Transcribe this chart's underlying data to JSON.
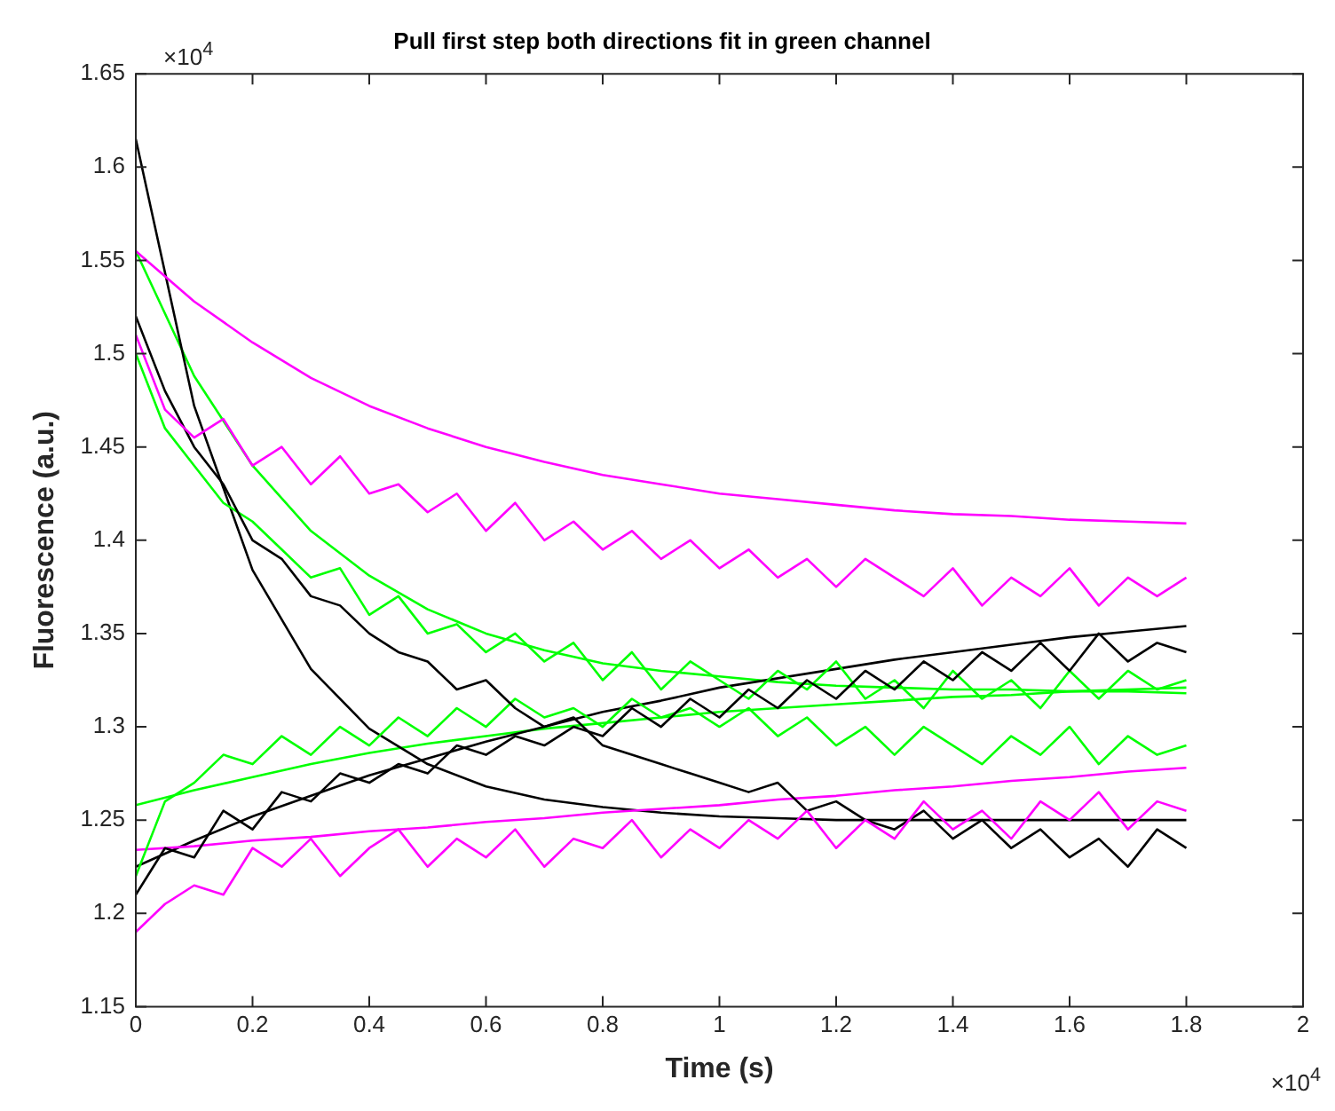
{
  "chart_data": {
    "type": "line",
    "title": "Pull first step both directions fit in green channel",
    "xlabel": "Time (s)",
    "ylabel": "Fluorescence (a.u.)",
    "annotations": [
      "×10$^{4}$",
      "×10$^{4}$"
    ],
    "xlim": [
      0,
      2
    ],
    "xticks": [
      0,
      0.2,
      0.4,
      0.6,
      0.8,
      1,
      1.2,
      1.4,
      1.6,
      1.8,
      2
    ],
    "ylim": [
      1.15,
      1.65
    ],
    "yticks": [
      1.15,
      1.2,
      1.25,
      1.3,
      1.35,
      1.4,
      1.45,
      1.5,
      1.55,
      1.6,
      1.65
    ],
    "grid": false,
    "legend": false,
    "series": [
      {
        "color": "#ff00ff",
        "x": [
          0,
          0.05,
          0.1,
          0.15,
          0.2,
          0.25,
          0.3,
          0.35,
          0.4,
          0.45,
          0.5,
          0.55,
          0.6,
          0.65,
          0.7,
          0.75,
          0.8,
          0.85,
          0.9,
          0.95,
          1,
          1.05,
          1.1,
          1.15,
          1.2,
          1.25,
          1.3,
          1.35,
          1.4,
          1.45,
          1.5,
          1.55,
          1.6,
          1.65,
          1.7,
          1.75,
          1.8
        ],
        "values": [
          1.51,
          1.47,
          1.455,
          1.465,
          1.44,
          1.45,
          1.43,
          1.445,
          1.425,
          1.43,
          1.415,
          1.425,
          1.405,
          1.42,
          1.4,
          1.41,
          1.395,
          1.405,
          1.39,
          1.4,
          1.385,
          1.395,
          1.38,
          1.39,
          1.375,
          1.39,
          1.38,
          1.37,
          1.385,
          1.365,
          1.38,
          1.37,
          1.385,
          1.365,
          1.38,
          1.37,
          1.38
        ]
      },
      {
        "color": "#ff00ff",
        "x": [
          0,
          0.05,
          0.1,
          0.15,
          0.2,
          0.25,
          0.3,
          0.35,
          0.4,
          0.45,
          0.5,
          0.55,
          0.6,
          0.65,
          0.7,
          0.75,
          0.8,
          0.85,
          0.9,
          0.95,
          1,
          1.05,
          1.1,
          1.15,
          1.2,
          1.25,
          1.3,
          1.35,
          1.4,
          1.45,
          1.5,
          1.55,
          1.6,
          1.65,
          1.7,
          1.75,
          1.8
        ],
        "values": [
          1.19,
          1.205,
          1.215,
          1.21,
          1.235,
          1.225,
          1.24,
          1.22,
          1.235,
          1.245,
          1.225,
          1.24,
          1.23,
          1.245,
          1.225,
          1.24,
          1.235,
          1.25,
          1.23,
          1.245,
          1.235,
          1.25,
          1.24,
          1.255,
          1.235,
          1.25,
          1.24,
          1.26,
          1.245,
          1.255,
          1.24,
          1.26,
          1.25,
          1.265,
          1.245,
          1.26,
          1.255
        ]
      },
      {
        "color": "#000000",
        "x": [
          0,
          0.05,
          0.1,
          0.15,
          0.2,
          0.25,
          0.3,
          0.35,
          0.4,
          0.45,
          0.5,
          0.55,
          0.6,
          0.65,
          0.7,
          0.75,
          0.8,
          0.85,
          0.9,
          0.95,
          1,
          1.05,
          1.1,
          1.15,
          1.2,
          1.25,
          1.3,
          1.35,
          1.4,
          1.45,
          1.5,
          1.55,
          1.6,
          1.65,
          1.7,
          1.75,
          1.8
        ],
        "values": [
          1.52,
          1.48,
          1.45,
          1.43,
          1.4,
          1.39,
          1.37,
          1.365,
          1.35,
          1.34,
          1.335,
          1.32,
          1.325,
          1.31,
          1.3,
          1.305,
          1.29,
          1.285,
          1.28,
          1.275,
          1.27,
          1.265,
          1.27,
          1.255,
          1.26,
          1.25,
          1.245,
          1.255,
          1.24,
          1.25,
          1.235,
          1.245,
          1.23,
          1.24,
          1.225,
          1.245,
          1.235
        ]
      },
      {
        "color": "#000000",
        "x": [
          0,
          0.05,
          0.1,
          0.15,
          0.2,
          0.25,
          0.3,
          0.35,
          0.4,
          0.45,
          0.5,
          0.55,
          0.6,
          0.65,
          0.7,
          0.75,
          0.8,
          0.85,
          0.9,
          0.95,
          1,
          1.05,
          1.1,
          1.15,
          1.2,
          1.25,
          1.3,
          1.35,
          1.4,
          1.45,
          1.5,
          1.55,
          1.6,
          1.65,
          1.7,
          1.75,
          1.8
        ],
        "values": [
          1.21,
          1.235,
          1.23,
          1.255,
          1.245,
          1.265,
          1.26,
          1.275,
          1.27,
          1.28,
          1.275,
          1.29,
          1.285,
          1.295,
          1.29,
          1.3,
          1.295,
          1.31,
          1.3,
          1.315,
          1.305,
          1.32,
          1.31,
          1.325,
          1.315,
          1.33,
          1.32,
          1.335,
          1.325,
          1.34,
          1.33,
          1.345,
          1.33,
          1.35,
          1.335,
          1.345,
          1.34
        ]
      },
      {
        "color": "#00ff00",
        "x": [
          0,
          0.05,
          0.1,
          0.15,
          0.2,
          0.25,
          0.3,
          0.35,
          0.4,
          0.45,
          0.5,
          0.55,
          0.6,
          0.65,
          0.7,
          0.75,
          0.8,
          0.85,
          0.9,
          0.95,
          1,
          1.05,
          1.1,
          1.15,
          1.2,
          1.25,
          1.3,
          1.35,
          1.4,
          1.45,
          1.5,
          1.55,
          1.6,
          1.65,
          1.7,
          1.75,
          1.8
        ],
        "values": [
          1.5,
          1.46,
          1.44,
          1.42,
          1.41,
          1.395,
          1.38,
          1.385,
          1.36,
          1.37,
          1.35,
          1.355,
          1.34,
          1.35,
          1.335,
          1.345,
          1.325,
          1.34,
          1.32,
          1.335,
          1.325,
          1.315,
          1.33,
          1.32,
          1.335,
          1.315,
          1.325,
          1.31,
          1.33,
          1.315,
          1.325,
          1.31,
          1.33,
          1.315,
          1.33,
          1.32,
          1.325
        ]
      },
      {
        "color": "#00ff00",
        "x": [
          0,
          0.05,
          0.1,
          0.15,
          0.2,
          0.25,
          0.3,
          0.35,
          0.4,
          0.45,
          0.5,
          0.55,
          0.6,
          0.65,
          0.7,
          0.75,
          0.8,
          0.85,
          0.9,
          0.95,
          1,
          1.05,
          1.1,
          1.15,
          1.2,
          1.25,
          1.3,
          1.35,
          1.4,
          1.45,
          1.5,
          1.55,
          1.6,
          1.65,
          1.7,
          1.75,
          1.8
        ],
        "values": [
          1.22,
          1.26,
          1.27,
          1.285,
          1.28,
          1.295,
          1.285,
          1.3,
          1.29,
          1.305,
          1.295,
          1.31,
          1.3,
          1.315,
          1.305,
          1.31,
          1.3,
          1.315,
          1.305,
          1.31,
          1.3,
          1.31,
          1.295,
          1.305,
          1.29,
          1.3,
          1.285,
          1.3,
          1.29,
          1.28,
          1.295,
          1.285,
          1.3,
          1.28,
          1.295,
          1.285,
          1.29
        ]
      },
      {
        "color": "#ff00ff",
        "x": [
          0,
          0.1,
          0.2,
          0.3,
          0.4,
          0.5,
          0.6,
          0.7,
          0.8,
          0.9,
          1,
          1.1,
          1.2,
          1.3,
          1.4,
          1.5,
          1.6,
          1.7,
          1.8
        ],
        "values": [
          1.555,
          1.528,
          1.506,
          1.487,
          1.472,
          1.46,
          1.45,
          1.442,
          1.435,
          1.43,
          1.425,
          1.422,
          1.419,
          1.416,
          1.414,
          1.413,
          1.411,
          1.41,
          1.409
        ]
      },
      {
        "color": "#ff00ff",
        "x": [
          0,
          0.1,
          0.2,
          0.3,
          0.4,
          0.5,
          0.6,
          0.7,
          0.8,
          0.9,
          1,
          1.1,
          1.2,
          1.3,
          1.4,
          1.5,
          1.6,
          1.7,
          1.8
        ],
        "values": [
          1.234,
          1.236,
          1.239,
          1.241,
          1.244,
          1.246,
          1.249,
          1.251,
          1.254,
          1.256,
          1.258,
          1.261,
          1.263,
          1.266,
          1.268,
          1.271,
          1.273,
          1.276,
          1.278
        ]
      },
      {
        "color": "#000000",
        "x": [
          0,
          0.1,
          0.2,
          0.3,
          0.4,
          0.5,
          0.6,
          0.7,
          0.8,
          0.9,
          1,
          1.1,
          1.2,
          1.3,
          1.4,
          1.5,
          1.6,
          1.7,
          1.8
        ],
        "values": [
          1.615,
          1.472,
          1.384,
          1.331,
          1.299,
          1.28,
          1.268,
          1.261,
          1.257,
          1.254,
          1.252,
          1.251,
          1.25,
          1.25,
          1.25,
          1.25,
          1.25,
          1.25,
          1.25
        ]
      },
      {
        "color": "#000000",
        "x": [
          0,
          0.1,
          0.2,
          0.3,
          0.4,
          0.5,
          0.6,
          0.7,
          0.8,
          0.9,
          1,
          1.1,
          1.2,
          1.3,
          1.4,
          1.5,
          1.6,
          1.7,
          1.8
        ],
        "values": [
          1.225,
          1.239,
          1.252,
          1.263,
          1.274,
          1.283,
          1.292,
          1.3,
          1.308,
          1.314,
          1.321,
          1.326,
          1.331,
          1.336,
          1.34,
          1.344,
          1.348,
          1.351,
          1.354
        ]
      },
      {
        "color": "#00ff00",
        "x": [
          0,
          0.1,
          0.2,
          0.3,
          0.4,
          0.5,
          0.6,
          0.7,
          0.8,
          0.9,
          1,
          1.1,
          1.2,
          1.3,
          1.4,
          1.5,
          1.6,
          1.7,
          1.8
        ],
        "values": [
          1.555,
          1.488,
          1.44,
          1.405,
          1.381,
          1.363,
          1.35,
          1.341,
          1.334,
          1.33,
          1.327,
          1.324,
          1.322,
          1.321,
          1.32,
          1.32,
          1.319,
          1.319,
          1.318
        ]
      },
      {
        "color": "#00ff00",
        "x": [
          0,
          0.1,
          0.2,
          0.3,
          0.4,
          0.5,
          0.6,
          0.7,
          0.8,
          0.9,
          1,
          1.1,
          1.2,
          1.3,
          1.4,
          1.5,
          1.6,
          1.7,
          1.8
        ],
        "values": [
          1.258,
          1.266,
          1.273,
          1.28,
          1.286,
          1.291,
          1.295,
          1.299,
          1.302,
          1.305,
          1.308,
          1.31,
          1.312,
          1.314,
          1.316,
          1.317,
          1.319,
          1.32,
          1.321
        ]
      }
    ]
  }
}
